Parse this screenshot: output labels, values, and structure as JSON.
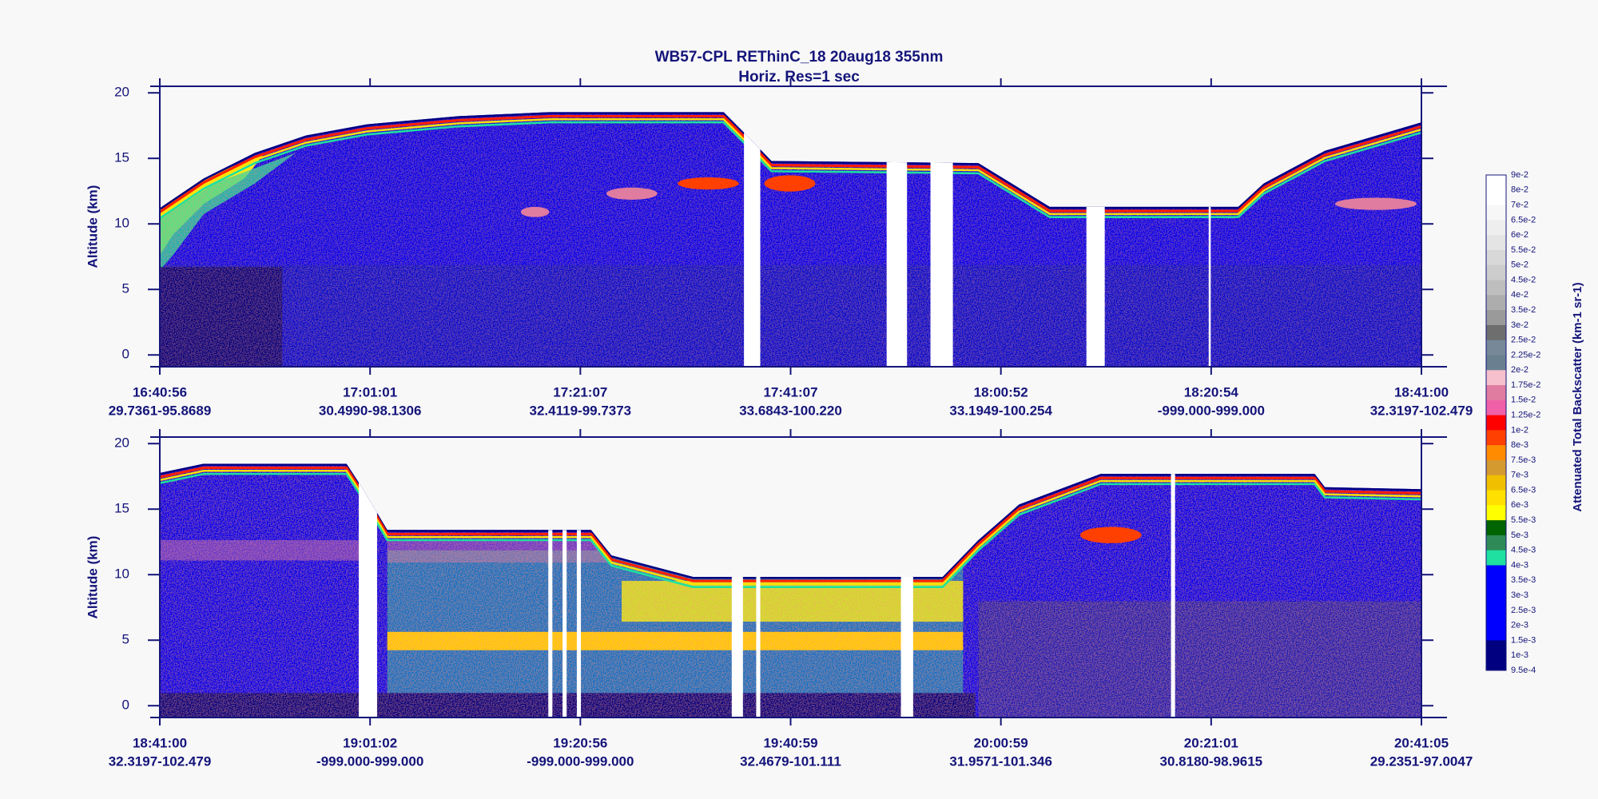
{
  "title": "WB57-CPL  REThinC_18  20aug18  355nm",
  "subtitle": "Horiz. Res=1 sec",
  "chart_data": [
    {
      "type": "curtain",
      "y_label": "Altitude (km)",
      "ylim": [
        -0.9,
        20.5
      ],
      "yticks": [
        0,
        5,
        10,
        15,
        20
      ],
      "x_times": [
        "16:40:56",
        "17:01:01",
        "17:21:07",
        "17:41:07",
        "18:00:52",
        "18:20:54",
        "18:41:00"
      ],
      "x_positions": [
        "29.7361-95.8689",
        "30.4990-98.1306",
        "32.4119-99.7373",
        "33.6843-100.220",
        "33.1949-100.254",
        "-999.000-999.000",
        "32.3197-102.479"
      ]
    },
    {
      "type": "curtain",
      "y_label": "Altitude (km)",
      "ylim": [
        -0.9,
        20.5
      ],
      "yticks": [
        0,
        5,
        10,
        15,
        20
      ],
      "x_times": [
        "18:41:00",
        "19:01:02",
        "19:20:56",
        "19:40:59",
        "20:00:59",
        "20:21:01",
        "20:41:05"
      ],
      "x_positions": [
        "32.3197-102.479",
        "-999.000-999.000",
        "-999.000-999.000",
        "32.4679-101.111",
        "31.9571-101.346",
        "30.8180-98.9615",
        "29.2351-97.0047"
      ]
    }
  ],
  "colorbar": {
    "title": "Attenuated Total Backscatter (km-1 sr-1)",
    "labels": [
      "9e-2",
      "8e-2",
      "7e-2",
      "6.5e-2",
      "6e-2",
      "5.5e-2",
      "5e-2",
      "4.5e-2",
      "4e-2",
      "3.5e-2",
      "3e-2",
      "2.5e-2",
      "2.25e-2",
      "2e-2",
      "1.75e-2",
      "1.5e-2",
      "1.25e-2",
      "1e-2",
      "8e-3",
      "7.5e-3",
      "7e-3",
      "6.5e-3",
      "6e-3",
      "5.5e-3",
      "5e-3",
      "4.5e-3",
      "4e-3",
      "3.5e-3",
      "3e-3",
      "2.5e-3",
      "2e-3",
      "1.5e-3",
      "1e-3",
      "9.5e-4"
    ],
    "colors": [
      "#ffffff",
      "#ffffff",
      "#f7f7f7",
      "#eeeeee",
      "#e4e4e4",
      "#d8d8d8",
      "#cccccc",
      "#bebebe",
      "#adadad",
      "#9a9a9a",
      "#6e6e6e",
      "#778899",
      "#6a8090",
      "#f6c0cc",
      "#e07ca0",
      "#f060a8",
      "#ff0000",
      "#ff4000",
      "#ff8c00",
      "#d49a30",
      "#f0c000",
      "#ffe000",
      "#ffff00",
      "#006400",
      "#2e8b57",
      "#1fe0a0",
      "#0000ff",
      "#0000ff",
      "#0000ff",
      "#0000ff",
      "#0000ff",
      "#000080",
      "#000080"
    ]
  }
}
